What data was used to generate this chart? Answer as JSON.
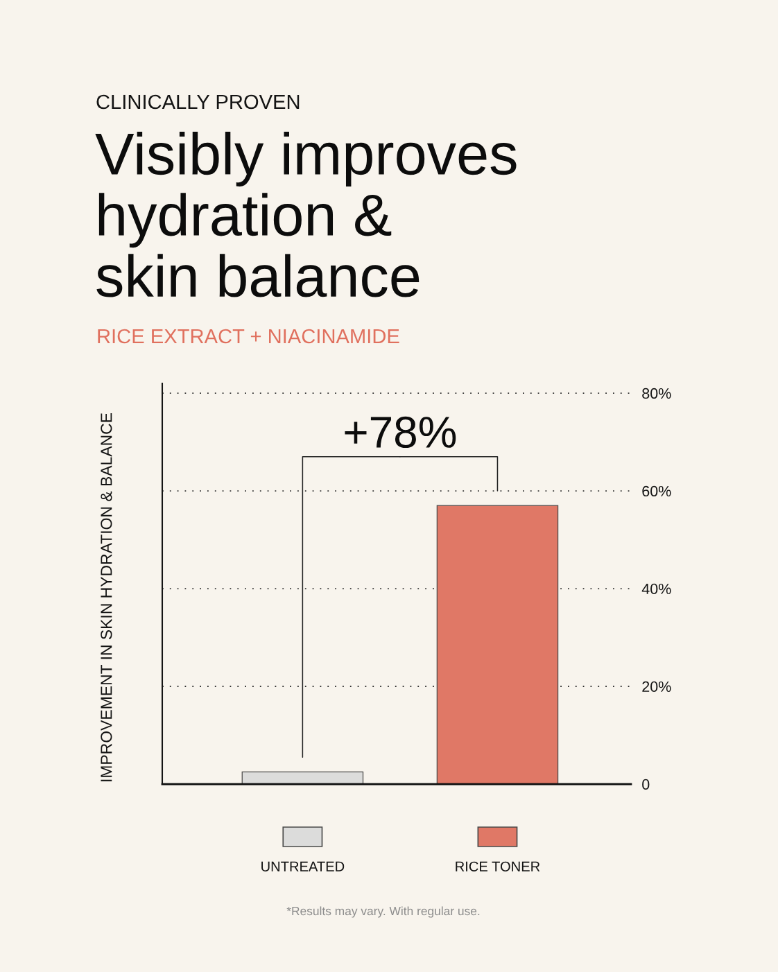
{
  "chart_data": {
    "type": "bar",
    "title": "Visibly improves\nhydration &\nskin balance",
    "subtitle": "RICE EXTRACT + NIACINAMIDE",
    "ylabel": "IMPROVEMENT IN SKIN HYDRATION & BALANCE",
    "categories": [
      "UNTREATED",
      "RICE TONER"
    ],
    "values": [
      2.5,
      57
    ],
    "colors": [
      "#dcdcdb",
      "#e07866"
    ],
    "ylim": [
      0,
      82
    ],
    "yticks": [
      0,
      {
        "value": 20,
        "label": "20%"
      },
      {
        "value": 40,
        "label": "40%"
      },
      {
        "value": 60,
        "label": "60%"
      },
      {
        "value": 80,
        "label": "80%"
      }
    ],
    "grid": "y",
    "annotations": [
      "CLINICALLY PROVEN",
      "+78%",
      "*Results may vary. With regular use."
    ]
  }
}
